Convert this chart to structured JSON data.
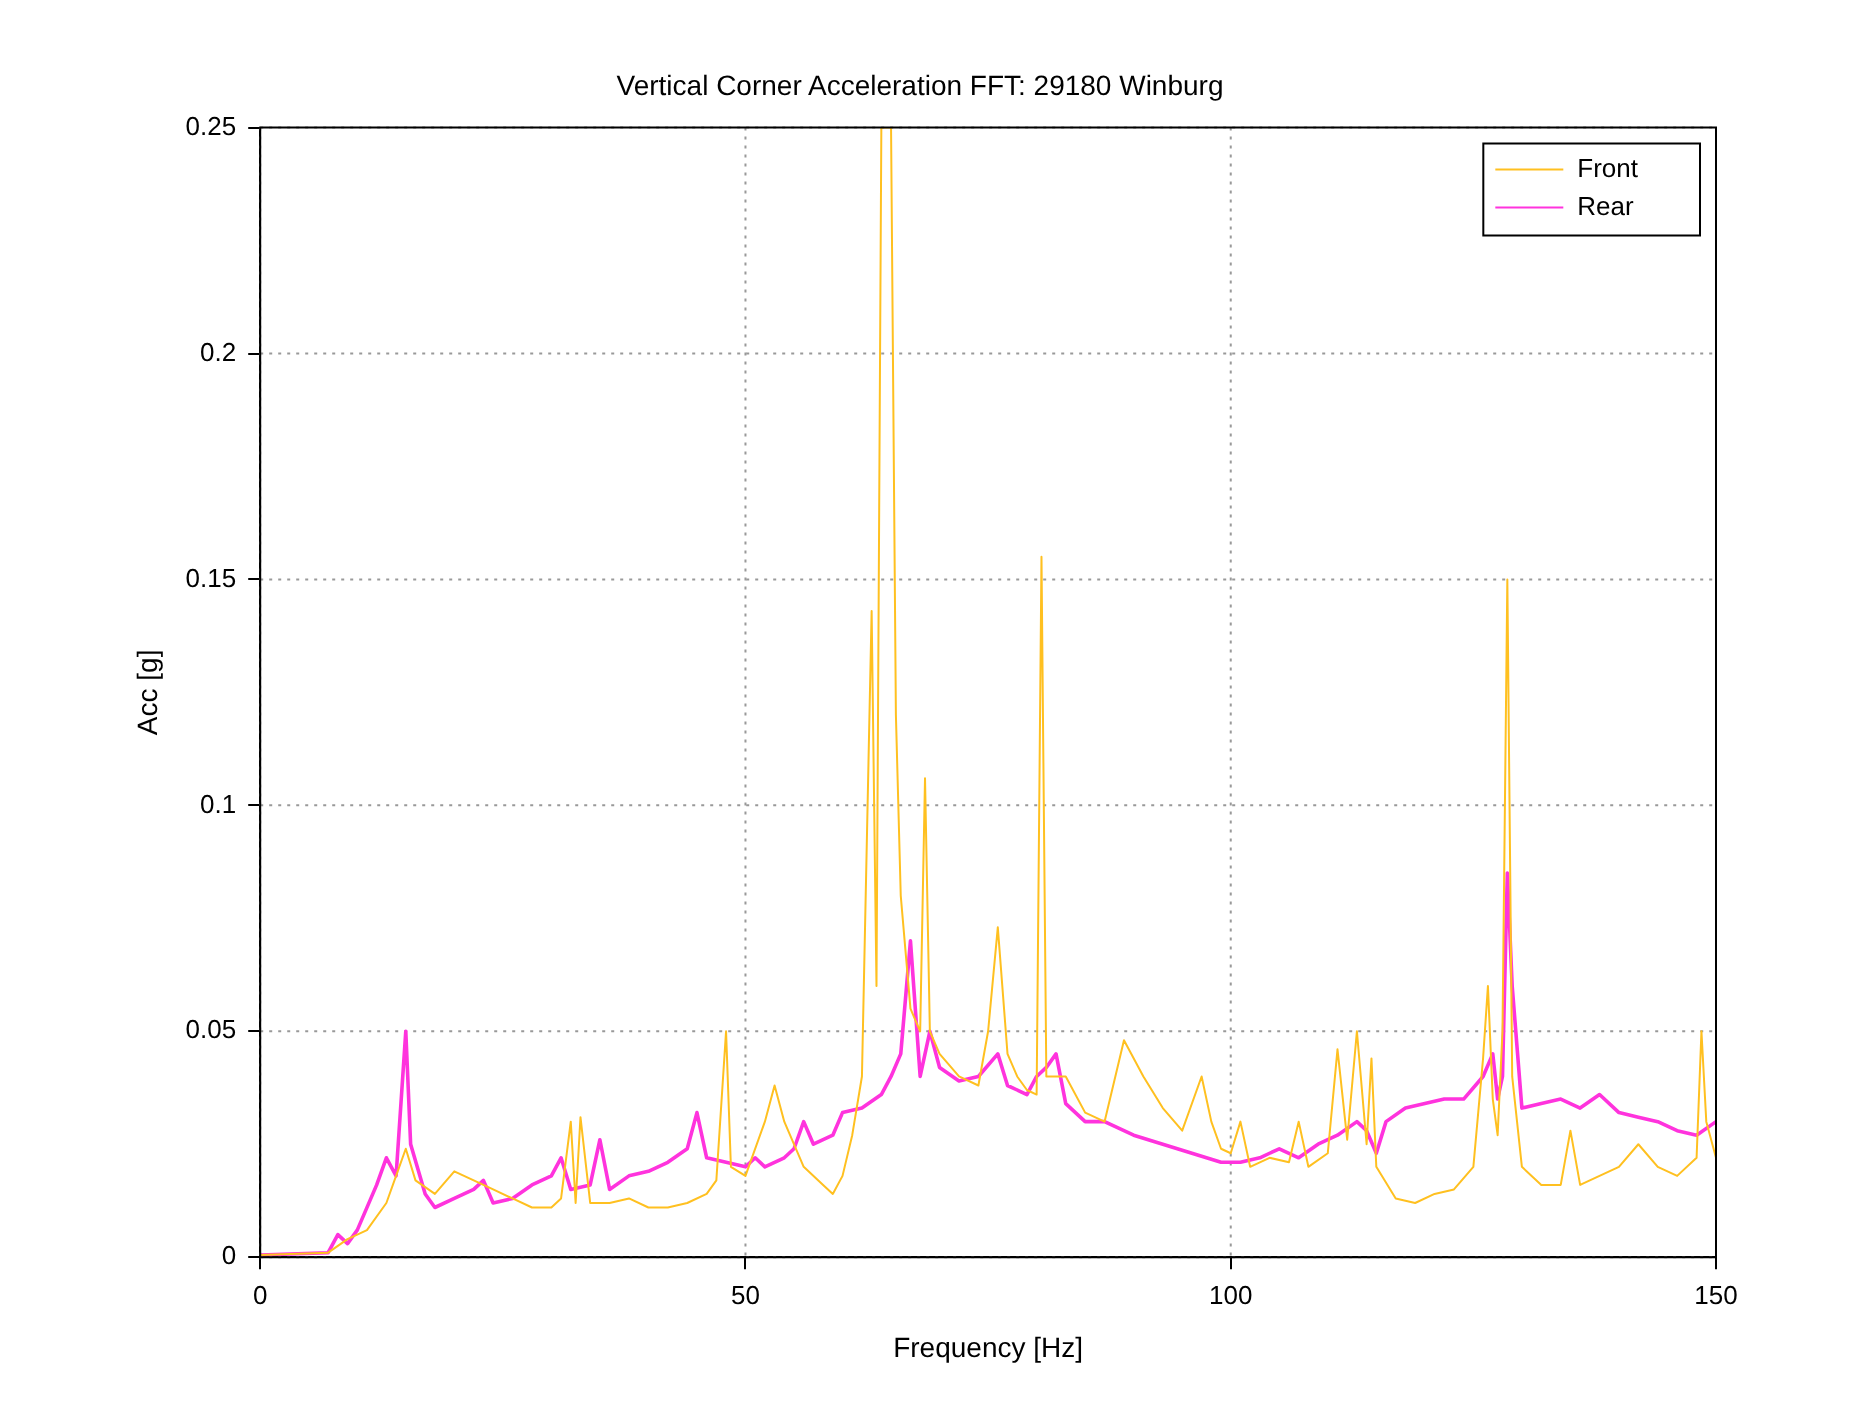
{
  "chart_data": {
    "type": "line",
    "title": "Vertical Corner Acceleration FFT: 29180 Winburg",
    "xlabel": "Frequency [Hz]",
    "ylabel": "Acc [g]",
    "xlim": [
      0,
      150
    ],
    "xticks": [
      0,
      50,
      100,
      150
    ],
    "ylim": [
      0,
      0.25
    ],
    "yticks": [
      0,
      0.05,
      0.1,
      0.15,
      0.2,
      0.25
    ],
    "grid": true,
    "legend": "top right",
    "series": [
      {
        "name": "Front",
        "color": "#ffc020",
        "x": [
          0,
          7,
          9,
          11,
          13,
          14,
          15,
          16,
          18,
          20,
          22,
          24,
          26,
          28,
          30,
          31,
          32,
          32.5,
          33,
          34,
          36,
          38,
          40,
          42,
          44,
          46,
          47,
          48,
          48.5,
          50,
          52,
          53,
          54,
          56,
          58,
          59,
          60,
          61,
          62,
          63,
          63.5,
          64,
          65,
          65.5,
          66,
          67,
          68,
          68.5,
          69,
          70,
          72,
          74,
          75,
          76,
          77,
          78,
          79,
          80,
          80.5,
          81,
          83,
          85,
          87,
          89,
          91,
          93,
          95,
          97,
          98,
          99,
          100,
          101,
          102,
          104,
          106,
          107,
          108,
          110,
          111,
          112,
          113,
          114,
          114.5,
          115,
          117,
          119,
          121,
          123,
          125,
          126,
          126.5,
          127,
          127.5,
          128,
          128.5,
          129,
          130,
          132,
          134,
          135,
          136,
          138,
          140,
          142,
          144,
          146,
          148,
          148.5,
          149,
          150
        ],
        "values": [
          0.0005,
          0.001,
          0.004,
          0.006,
          0.012,
          0.018,
          0.024,
          0.017,
          0.014,
          0.019,
          0.017,
          0.015,
          0.013,
          0.011,
          0.011,
          0.013,
          0.03,
          0.012,
          0.031,
          0.012,
          0.012,
          0.013,
          0.011,
          0.011,
          0.012,
          0.014,
          0.017,
          0.05,
          0.02,
          0.018,
          0.03,
          0.038,
          0.03,
          0.02,
          0.016,
          0.014,
          0.018,
          0.027,
          0.04,
          0.143,
          0.06,
          0.25,
          0.25,
          0.12,
          0.08,
          0.055,
          0.05,
          0.106,
          0.05,
          0.045,
          0.04,
          0.038,
          0.05,
          0.073,
          0.045,
          0.04,
          0.037,
          0.036,
          0.155,
          0.04,
          0.04,
          0.032,
          0.03,
          0.048,
          0.04,
          0.033,
          0.028,
          0.04,
          0.03,
          0.024,
          0.023,
          0.03,
          0.02,
          0.022,
          0.021,
          0.03,
          0.02,
          0.023,
          0.046,
          0.026,
          0.05,
          0.025,
          0.044,
          0.02,
          0.013,
          0.012,
          0.014,
          0.015,
          0.02,
          0.044,
          0.06,
          0.035,
          0.027,
          0.05,
          0.15,
          0.04,
          0.02,
          0.016,
          0.016,
          0.028,
          0.016,
          0.018,
          0.02,
          0.025,
          0.02,
          0.018,
          0.022,
          0.05,
          0.03,
          0.022
        ]
      },
      {
        "name": "Rear",
        "color": "#ff33dd",
        "x": [
          0,
          7,
          8,
          9,
          10,
          12,
          13,
          14,
          15,
          15.5,
          17,
          18,
          20,
          22,
          23,
          24,
          26,
          28,
          30,
          31,
          32,
          34,
          35,
          36,
          38,
          40,
          42,
          44,
          45,
          46,
          48,
          50,
          51,
          52,
          54,
          55,
          56,
          57,
          59,
          60,
          62,
          64,
          65,
          66,
          67,
          68,
          69,
          70,
          72,
          74,
          76,
          77,
          79,
          80,
          81,
          82,
          83,
          85,
          87,
          90,
          93,
          96,
          99,
          101,
          103,
          105,
          107,
          109,
          111,
          113,
          114,
          115,
          116,
          118,
          120,
          122,
          124,
          126,
          127,
          127.5,
          128,
          128.5,
          129,
          130,
          132,
          134,
          136,
          138,
          140,
          142,
          144,
          146,
          148,
          150
        ],
        "values": [
          0.0005,
          0.001,
          0.005,
          0.003,
          0.006,
          0.016,
          0.022,
          0.018,
          0.05,
          0.025,
          0.014,
          0.011,
          0.013,
          0.015,
          0.017,
          0.012,
          0.013,
          0.016,
          0.018,
          0.022,
          0.015,
          0.016,
          0.026,
          0.015,
          0.018,
          0.019,
          0.021,
          0.024,
          0.032,
          0.022,
          0.021,
          0.02,
          0.022,
          0.02,
          0.022,
          0.024,
          0.03,
          0.025,
          0.027,
          0.032,
          0.033,
          0.036,
          0.04,
          0.045,
          0.07,
          0.04,
          0.05,
          0.042,
          0.039,
          0.04,
          0.045,
          0.038,
          0.036,
          0.04,
          0.042,
          0.045,
          0.034,
          0.03,
          0.03,
          0.027,
          0.025,
          0.023,
          0.021,
          0.021,
          0.022,
          0.024,
          0.022,
          0.025,
          0.027,
          0.03,
          0.028,
          0.023,
          0.03,
          0.033,
          0.034,
          0.035,
          0.035,
          0.04,
          0.045,
          0.035,
          0.04,
          0.085,
          0.06,
          0.033,
          0.034,
          0.035,
          0.033,
          0.036,
          0.032,
          0.031,
          0.03,
          0.028,
          0.027,
          0.03
        ]
      }
    ]
  }
}
